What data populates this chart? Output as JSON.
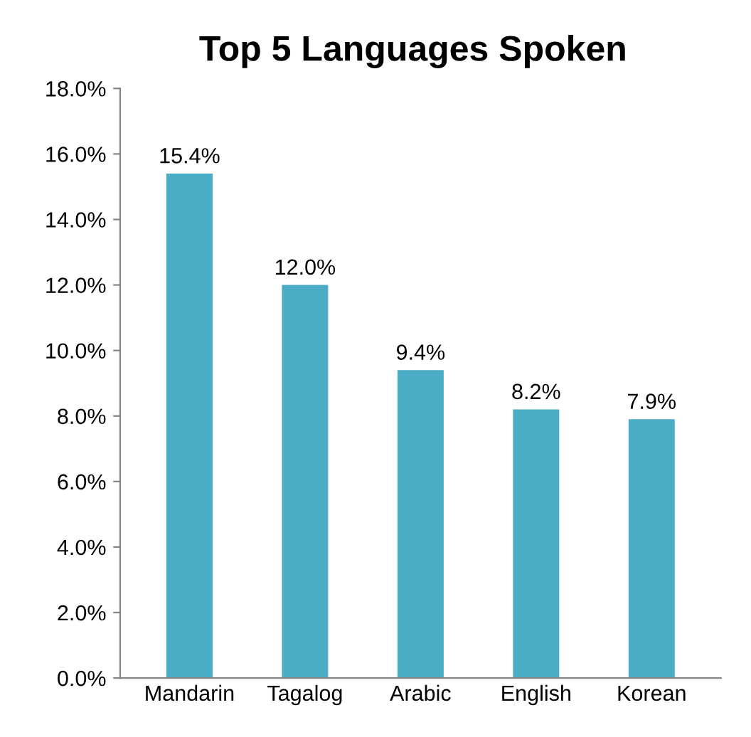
{
  "chart_data": {
    "type": "bar",
    "title": "Top 5 Languages Spoken",
    "categories": [
      "Mandarin",
      "Tagalog",
      "Arabic",
      "English",
      "Korean"
    ],
    "values": [
      15.4,
      12.0,
      9.4,
      8.2,
      7.9
    ],
    "value_labels": [
      "15.4%",
      "12.0%",
      "9.4%",
      "8.2%",
      "7.9%"
    ],
    "color": "#4bacc6",
    "ylim": [
      0,
      18
    ],
    "yticks": [
      {
        "value": 0,
        "label": "0.0%"
      },
      {
        "value": 2,
        "label": "2.0%"
      },
      {
        "value": 4,
        "label": "4.0%"
      },
      {
        "value": 6,
        "label": "6.0%"
      },
      {
        "value": 8,
        "label": "8.0%"
      },
      {
        "value": 10,
        "label": "10.0%"
      },
      {
        "value": 12,
        "label": "12.0%"
      },
      {
        "value": 14,
        "label": "14.0%"
      },
      {
        "value": 16,
        "label": "16.0%"
      },
      {
        "value": 18,
        "label": "18.0%"
      }
    ],
    "grid": false,
    "legend": false
  }
}
